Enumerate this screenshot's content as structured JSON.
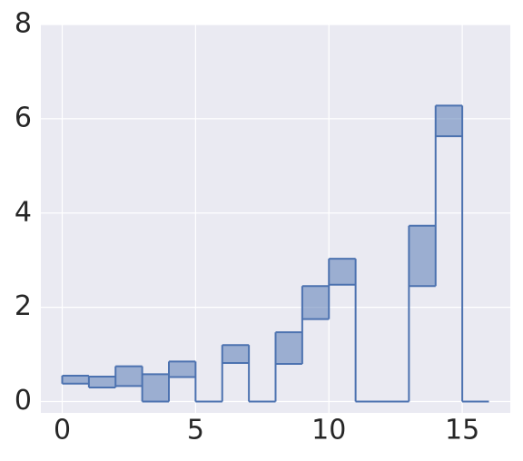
{
  "chart_data": {
    "type": "stairs",
    "edges": [
      0,
      1,
      2,
      3,
      4,
      5,
      6,
      7,
      8,
      9,
      10,
      11,
      12,
      13,
      14,
      15,
      16
    ],
    "values": [
      0.55,
      0.53,
      0.75,
      0.58,
      0.85,
      0,
      1.2,
      0,
      1.47,
      2.45,
      3.03,
      0,
      0,
      3.73,
      6.28,
      0
    ],
    "baseline": [
      0.38,
      0.3,
      0.33,
      0,
      0.52,
      0,
      0.82,
      0,
      0.8,
      1.75,
      2.48,
      0,
      0,
      2.45,
      5.63,
      0
    ],
    "color": "#4c72b0",
    "xlim": [
      -0.8,
      16.8
    ],
    "xticks": [
      0,
      5,
      10,
      15
    ],
    "ylim": [
      -0.24,
      8
    ],
    "yticks": [
      0,
      2,
      4,
      6,
      8
    ],
    "grid": true
  }
}
